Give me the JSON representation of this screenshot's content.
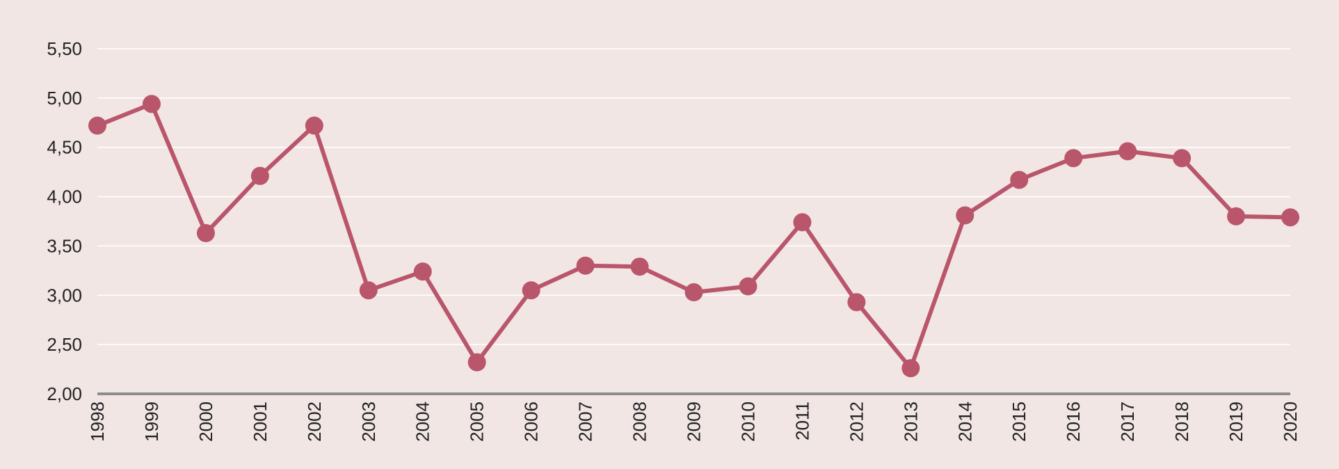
{
  "chart_data": {
    "type": "line",
    "title": "",
    "xlabel": "",
    "ylabel": "",
    "categories": [
      "1998",
      "1999",
      "2000",
      "2001",
      "2002",
      "2003",
      "2004",
      "2005",
      "2006",
      "2007",
      "2008",
      "2009",
      "2010",
      "2011",
      "2012",
      "2013",
      "2014",
      "2015",
      "2016",
      "2017",
      "2018",
      "2019",
      "2020"
    ],
    "series": [
      {
        "values": [
          4.72,
          4.94,
          3.63,
          4.21,
          4.72,
          3.05,
          3.24,
          2.32,
          3.05,
          3.3,
          3.29,
          3.03,
          3.09,
          3.74,
          2.93,
          2.26,
          3.81,
          4.17,
          4.39,
          4.46,
          4.39,
          3.8,
          3.79
        ]
      }
    ],
    "ylim": [
      2.0,
      5.5
    ],
    "yticks": [
      "2,00",
      "2,50",
      "3,00",
      "3,50",
      "4,00",
      "4,50",
      "5,00",
      "5,50"
    ],
    "grid": true,
    "legend": "none",
    "colors": {
      "background": "#f2e6e5",
      "line": "#b9566b",
      "grid": "#ffffff",
      "axis": "#8c8c8c",
      "text": "#222222"
    }
  }
}
